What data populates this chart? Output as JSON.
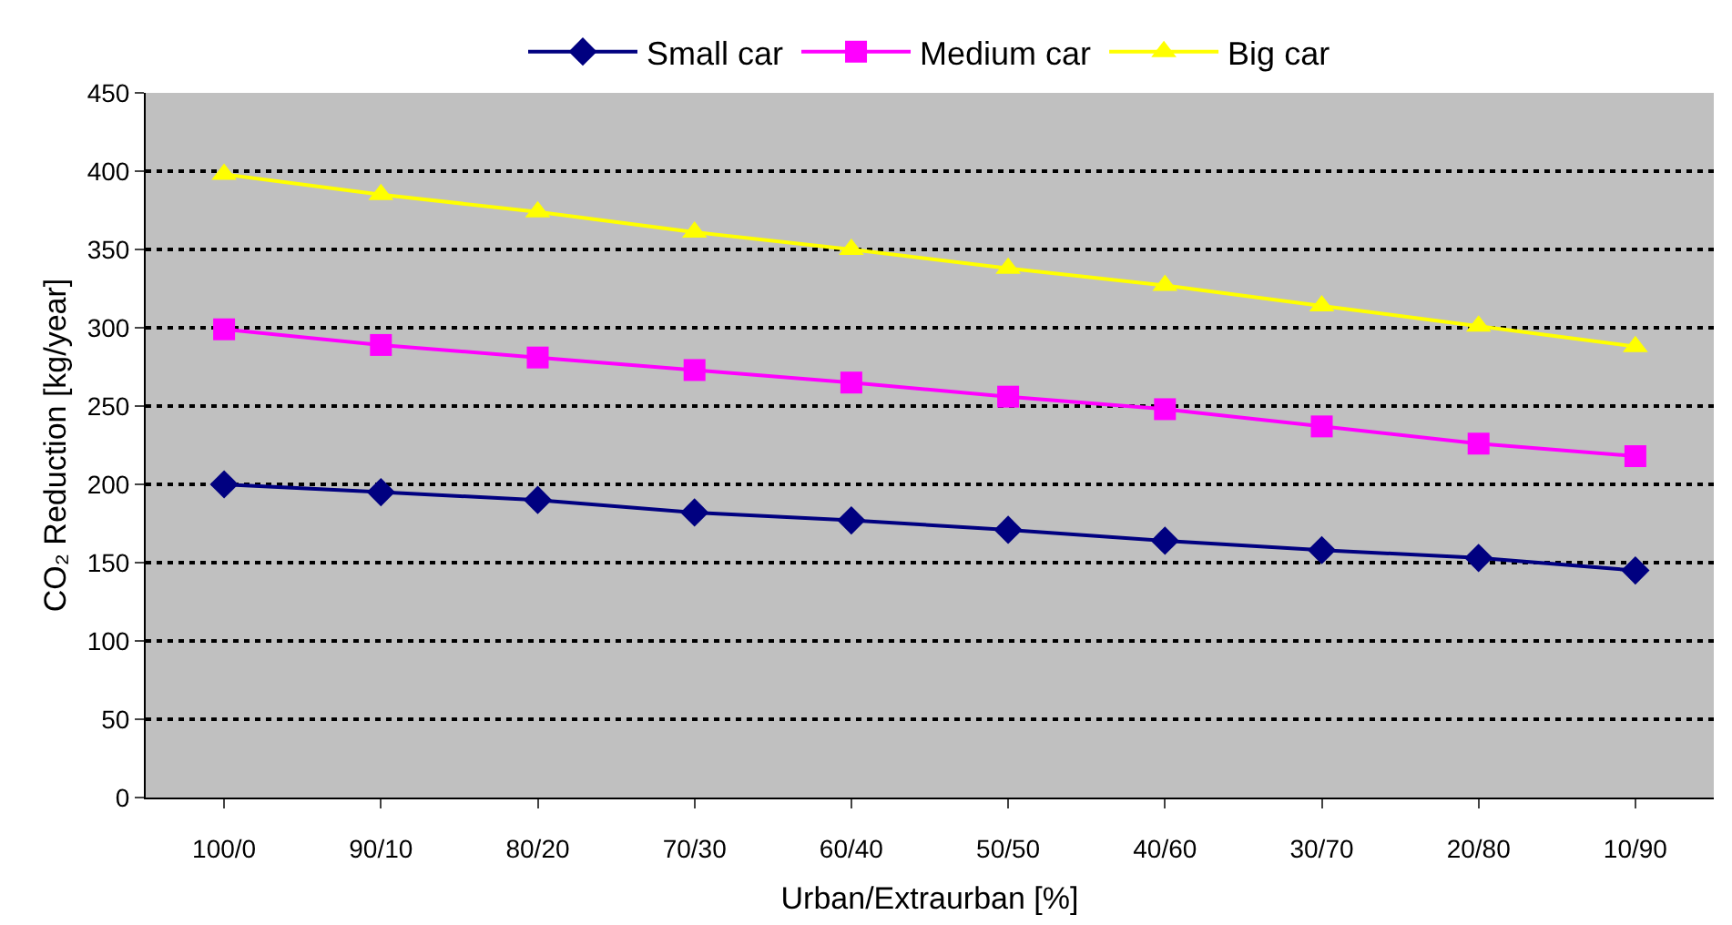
{
  "chart_data": {
    "type": "line",
    "xlabel": "Urban/Extraurban [%]",
    "ylabel": "CO₂ Reduction [kg/year]",
    "categories": [
      "100/0",
      "90/10",
      "80/20",
      "70/30",
      "60/40",
      "50/50",
      "40/60",
      "30/70",
      "20/80",
      "10/90"
    ],
    "series": [
      {
        "name": "Small car",
        "color": "#000080",
        "marker": "diamond",
        "values": [
          200,
          195,
          190,
          182,
          177,
          171,
          164,
          158,
          153,
          145
        ]
      },
      {
        "name": "Medium car",
        "color": "#ff00ff",
        "marker": "square",
        "values": [
          299,
          289,
          281,
          273,
          265,
          256,
          248,
          237,
          226,
          218
        ]
      },
      {
        "name": "Big car",
        "color": "#ffff00",
        "marker": "triangle",
        "values": [
          398,
          385,
          374,
          361,
          350,
          338,
          327,
          314,
          301,
          288
        ]
      }
    ],
    "ylim": [
      0,
      450
    ],
    "yticks": [
      0,
      50,
      100,
      150,
      200,
      250,
      300,
      350,
      400,
      450
    ],
    "grid": "y",
    "legend": "top",
    "line_style": "solid"
  }
}
